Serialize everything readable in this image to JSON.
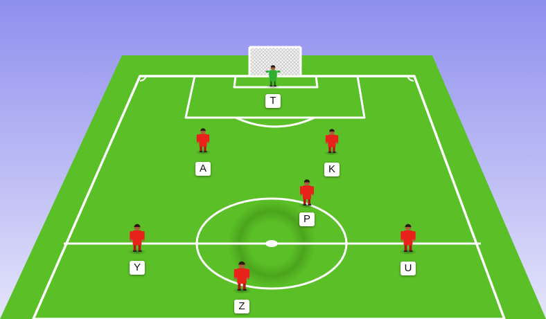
{
  "colors": {
    "sky_top": "#8f8fee",
    "sky_bottom": "#e2e2fb",
    "grass_light": "#62c92c",
    "grass_dark": "#4aa61d",
    "line": "#ffffff",
    "player_red": "#e8221a",
    "keeper_green": "#2fae2f"
  },
  "players": [
    {
      "id": "T",
      "label": "T",
      "role": "goalkeeper"
    },
    {
      "id": "A",
      "label": "A",
      "role": "outfield"
    },
    {
      "id": "K",
      "label": "K",
      "role": "outfield"
    },
    {
      "id": "P",
      "label": "P",
      "role": "outfield"
    },
    {
      "id": "Y",
      "label": "Y",
      "role": "outfield"
    },
    {
      "id": "U",
      "label": "U",
      "role": "outfield"
    },
    {
      "id": "Z",
      "label": "Z",
      "role": "outfield"
    }
  ]
}
